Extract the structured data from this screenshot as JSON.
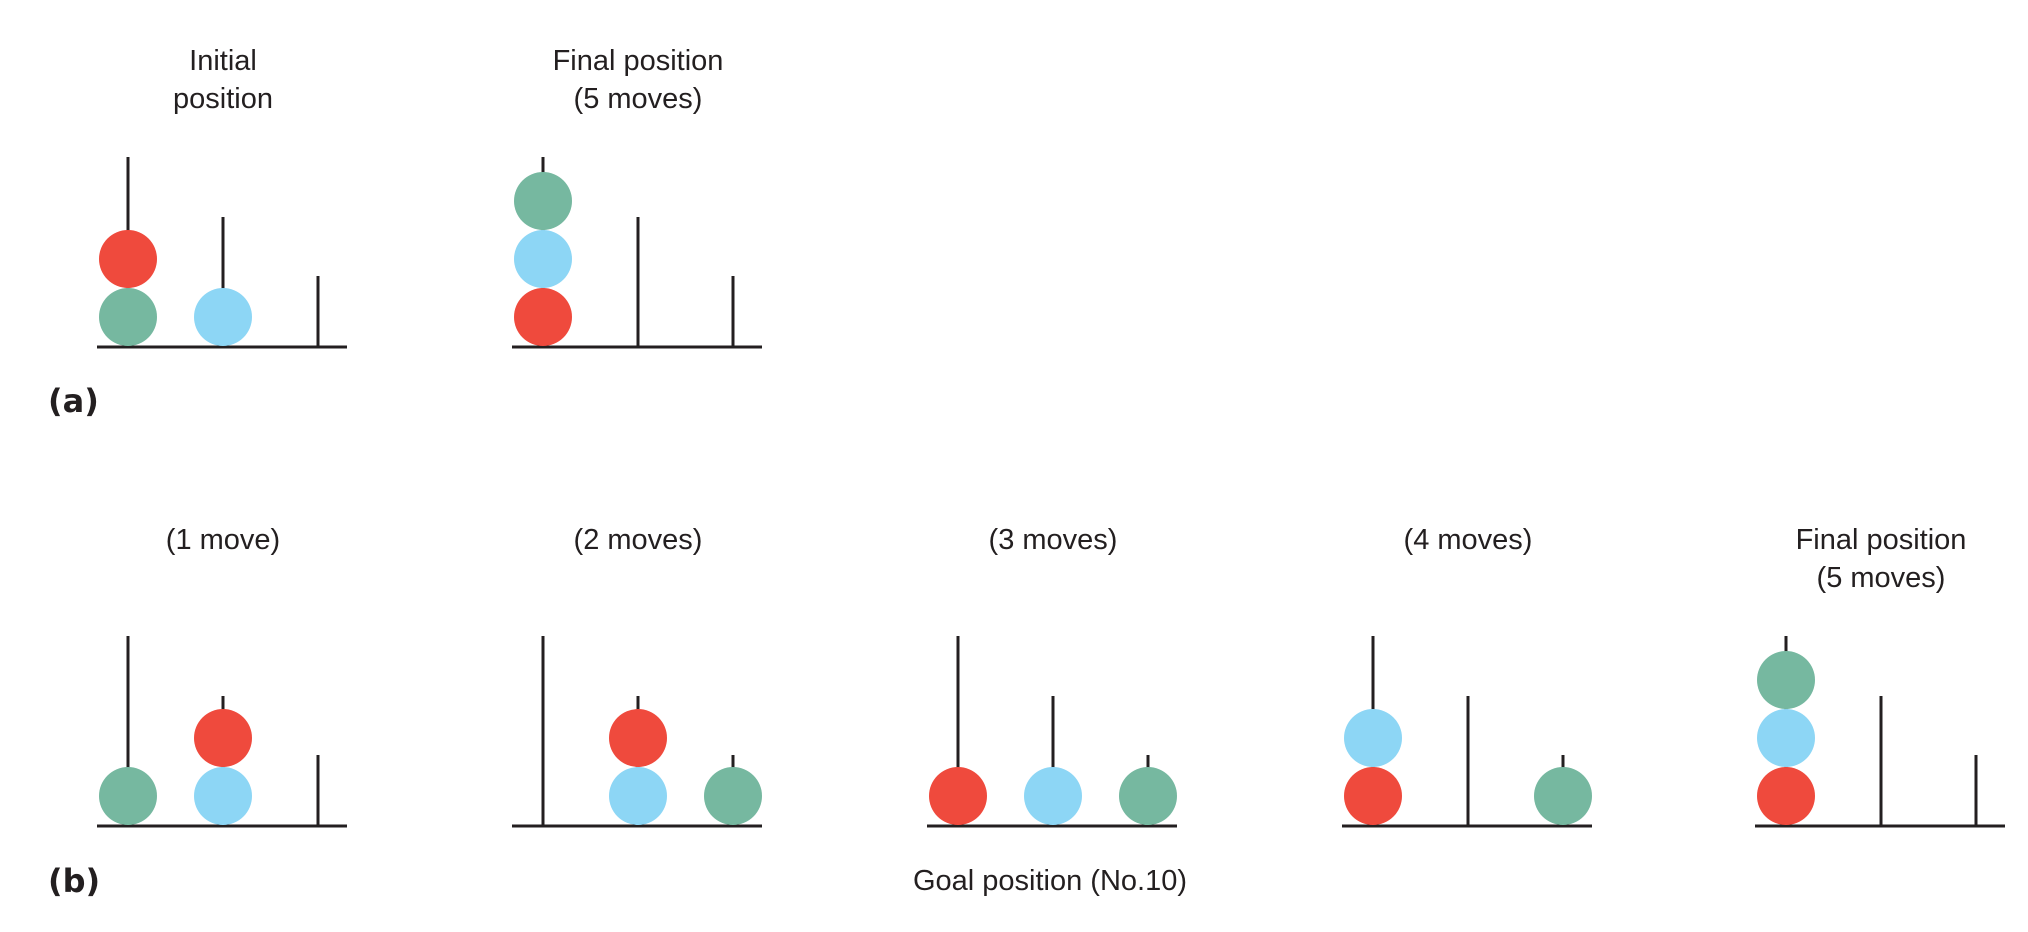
{
  "colors": {
    "red": "#ef4a3d",
    "blue": "#8dd6f5",
    "green": "#76b8a0",
    "line": "#231f20"
  },
  "part_a": {
    "label": "(a)",
    "panels": [
      {
        "title_lines": [
          "Initial",
          "position"
        ],
        "pegs": [
          [
            "green",
            "red"
          ],
          [
            "blue"
          ],
          []
        ]
      },
      {
        "title_lines": [
          "Final position",
          "(5 moves)"
        ],
        "pegs": [
          [
            "red",
            "blue",
            "green"
          ],
          [],
          []
        ]
      }
    ]
  },
  "part_b": {
    "label": "(b)",
    "caption": "Goal position (No.10)",
    "panels": [
      {
        "title_lines": [
          "(1 move)"
        ],
        "pegs": [
          [
            "green"
          ],
          [
            "blue",
            "red"
          ],
          []
        ]
      },
      {
        "title_lines": [
          "(2 moves)"
        ],
        "pegs": [
          [],
          [
            "blue",
            "red"
          ],
          [
            "green"
          ]
        ]
      },
      {
        "title_lines": [
          "(3 moves)"
        ],
        "pegs": [
          [
            "red"
          ],
          [
            "blue"
          ],
          [
            "green"
          ]
        ]
      },
      {
        "title_lines": [
          "(4 moves)"
        ],
        "pegs": [
          [
            "red",
            "blue"
          ],
          [],
          [
            "green"
          ]
        ]
      },
      {
        "title_lines": [
          "Final position",
          "(5 moves)"
        ],
        "pegs": [
          [
            "red",
            "blue",
            "green"
          ],
          [],
          []
        ]
      }
    ]
  }
}
